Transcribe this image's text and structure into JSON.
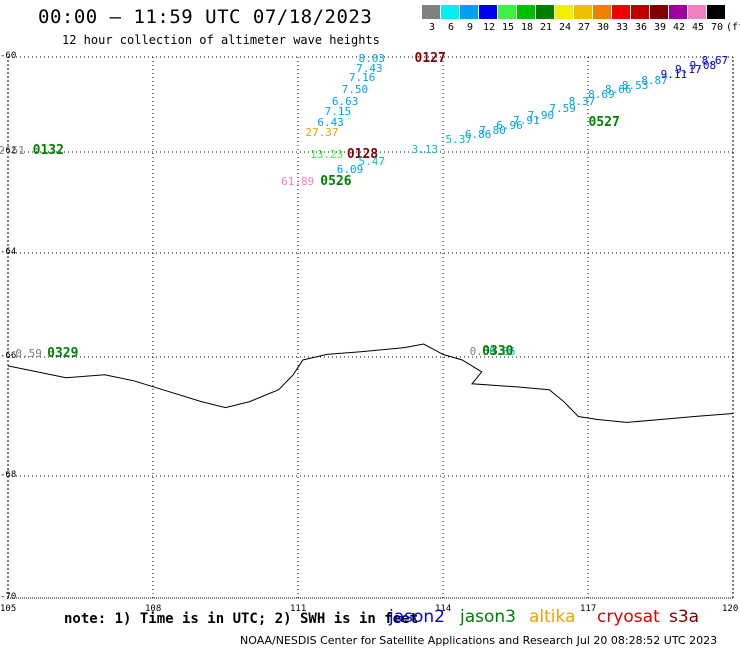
{
  "header": {
    "title": "00:00 – 11:59 UTC 07/18/2023",
    "subtitle": "12 hour collection of altimeter wave heights"
  },
  "color_scale": {
    "unit": "(ft)",
    "steps": [
      {
        "label": "3",
        "color": "#808080"
      },
      {
        "label": "6",
        "color": "#00f0f0"
      },
      {
        "label": "9",
        "color": "#00a0f0"
      },
      {
        "label": "12",
        "color": "#0000f0"
      },
      {
        "label": "15",
        "color": "#40f040"
      },
      {
        "label": "18",
        "color": "#00c000"
      },
      {
        "label": "21",
        "color": "#008000"
      },
      {
        "label": "24",
        "color": "#f0f000"
      },
      {
        "label": "27",
        "color": "#f0c000"
      },
      {
        "label": "30",
        "color": "#f08000"
      },
      {
        "label": "33",
        "color": "#f00000"
      },
      {
        "label": "36",
        "color": "#c00000"
      },
      {
        "label": "39",
        "color": "#800000"
      },
      {
        "label": "42",
        "color": "#a000a0"
      },
      {
        "label": "45",
        "color": "#f080c0"
      },
      {
        "label": "70",
        "color": "#000000"
      }
    ]
  },
  "map": {
    "latitudes": [
      "-60",
      "-62",
      "-64",
      "-66",
      "-68",
      "-70"
    ],
    "longitudes": [
      "105",
      "108",
      "111",
      "114",
      "117",
      "120"
    ],
    "coastline": [
      [
        105,
        -66.15
      ],
      [
        106.2,
        -66.35
      ],
      [
        107,
        -66.3
      ],
      [
        107.6,
        -66.4
      ],
      [
        108.2,
        -66.55
      ],
      [
        109,
        -66.75
      ],
      [
        109.5,
        -66.85
      ],
      [
        110,
        -66.75
      ],
      [
        110.6,
        -66.55
      ],
      [
        110.9,
        -66.3
      ],
      [
        111.1,
        -66.05
      ],
      [
        111.6,
        -65.95
      ],
      [
        112.3,
        -65.9
      ],
      [
        113.2,
        -65.82
      ],
      [
        113.6,
        -65.75
      ],
      [
        114,
        -65.95
      ],
      [
        114.4,
        -66.05
      ],
      [
        114.8,
        -66.25
      ],
      [
        114.6,
        -66.45
      ],
      [
        115.5,
        -66.5
      ],
      [
        116.2,
        -66.55
      ],
      [
        116.5,
        -66.75
      ],
      [
        116.8,
        -67.0
      ],
      [
        117.2,
        -67.05
      ],
      [
        117.8,
        -67.1
      ],
      [
        118.5,
        -67.05
      ],
      [
        119.2,
        -67.0
      ],
      [
        120,
        -66.95
      ]
    ],
    "tracks": [
      {
        "name": "0127",
        "label_color": "#800000",
        "pass_at": [
          113.7,
          -60.05
        ],
        "obs": [
          {
            "v": "8.03",
            "lon": 112.5,
            "lat": -60.05,
            "color": "#00a0f0"
          },
          {
            "v": "7.43",
            "lon": 112.45,
            "lat": -60.25,
            "color": "#00a0f0"
          },
          {
            "v": "7.16",
            "lon": 112.3,
            "lat": -60.45,
            "color": "#00a0f0"
          },
          {
            "v": "7.50",
            "lon": 112.15,
            "lat": -60.7,
            "color": "#00a0f0"
          },
          {
            "v": "6.63",
            "lon": 111.95,
            "lat": -60.95,
            "color": "#00a0f0"
          },
          {
            "v": "7.15",
            "lon": 111.8,
            "lat": -61.15,
            "color": "#00a0f0"
          },
          {
            "v": "6.43",
            "lon": 111.65,
            "lat": -61.38,
            "color": "#00a0f0"
          },
          {
            "v": "27.37",
            "lon": 111.4,
            "lat": -61.6,
            "color": "#f0a000"
          }
        ]
      },
      {
        "name": "0527",
        "label_color": "#008000",
        "pass_at": [
          117.3,
          -61.38
        ],
        "obs": [
          {
            "v": "3.13",
            "lon": 113.6,
            "lat": -61.95,
            "color": "#00c0c0"
          },
          {
            "v": "5.37",
            "lon": 114.3,
            "lat": -61.75,
            "color": "#00c0c0"
          },
          {
            "v": "6.86",
            "lon": 114.7,
            "lat": -61.65,
            "color": "#00a0f0"
          },
          {
            "v": "7.80",
            "lon": 115.0,
            "lat": -61.55,
            "color": "#00a0f0"
          },
          {
            "v": "6.96",
            "lon": 115.35,
            "lat": -61.45,
            "color": "#00a0f0"
          },
          {
            "v": "7.91",
            "lon": 115.7,
            "lat": -61.35,
            "color": "#00a0f0"
          },
          {
            "v": "7.90",
            "lon": 116.0,
            "lat": -61.25,
            "color": "#00a0f0"
          },
          {
            "v": "7.59",
            "lon": 116.45,
            "lat": -61.1,
            "color": "#00a0f0"
          },
          {
            "v": "8.37",
            "lon": 116.85,
            "lat": -60.95,
            "color": "#00a0f0"
          },
          {
            "v": "8.69",
            "lon": 117.25,
            "lat": -60.8,
            "color": "#00a0f0"
          },
          {
            "v": "8.66",
            "lon": 117.6,
            "lat": -60.7,
            "color": "#00a0f0"
          },
          {
            "v": "8.53",
            "lon": 117.95,
            "lat": -60.6,
            "color": "#00a0f0"
          },
          {
            "v": "8.87",
            "lon": 118.35,
            "lat": -60.5,
            "color": "#00a0f0"
          },
          {
            "v": "9.11",
            "lon": 118.75,
            "lat": -60.38,
            "color": "#0000f0"
          },
          {
            "v": "9.17",
            "lon": 119.05,
            "lat": -60.28,
            "color": "#0000f0"
          },
          {
            "v": "9.08",
            "lon": 119.35,
            "lat": -60.18,
            "color": "#0000f0"
          },
          {
            "v": "8.67",
            "lon": 119.6,
            "lat": -60.08,
            "color": "#0000f0"
          }
        ]
      },
      {
        "name": "0128",
        "label_color": "#800000",
        "pass_at": [
          112.3,
          -62.05
        ],
        "obs": [
          {
            "v": "13.23",
            "lon": 111.5,
            "lat": -62.05,
            "color": "#40f040"
          }
        ]
      },
      {
        "name": "0526",
        "label_color": "#008000",
        "pass_at": [
          111.75,
          -62.6
        ],
        "obs": [
          {
            "v": "6.09",
            "lon": 112.05,
            "lat": -62.35,
            "color": "#00a0f0"
          },
          {
            "v": "5.47",
            "lon": 112.5,
            "lat": -62.2,
            "color": "#00c0c0"
          },
          {
            "v": "61.89",
            "lon": 110.9,
            "lat": -62.6,
            "color": "#f080c0"
          }
        ]
      },
      {
        "name": "0132",
        "label_color": "#008000",
        "pass_at": [
          105.8,
          -61.98
        ],
        "obs": [
          {
            "v": "2.51",
            "lon": 105.05,
            "lat": -61.98,
            "color": "#808080"
          }
        ]
      },
      {
        "name": "0329",
        "label_color": "#008000",
        "pass_at": [
          106.1,
          -65.95
        ],
        "obs": [
          {
            "v": "0.59",
            "lon": 105.4,
            "lat": -65.95,
            "color": "#808080"
          }
        ]
      },
      {
        "name": "0330",
        "label_color": "#008000",
        "pass_at": [
          115.1,
          -65.9
        ],
        "obs": [
          {
            "v": "0.59",
            "lon": 114.8,
            "lat": -65.9,
            "color": "#808080"
          },
          {
            "v": "0.86",
            "lon": 115.2,
            "lat": -65.9,
            "color": "#00c0c0"
          }
        ]
      }
    ]
  },
  "footer": {
    "note": "note: 1) Time is in UTC; 2) SWH is in feet",
    "satellites": [
      {
        "name": "jason2",
        "color": "#0000e0"
      },
      {
        "name": "jason3",
        "color": "#008000"
      },
      {
        "name": "altika",
        "color": "#f0a000"
      },
      {
        "name": "cryosat",
        "color": "#e00000"
      },
      {
        "name": "s3a",
        "color": "#800000"
      }
    ],
    "credit": "NOAA/NESDIS Center for Satellite Applications and Research    Jul 20 08:28:52 UTC 2023"
  }
}
